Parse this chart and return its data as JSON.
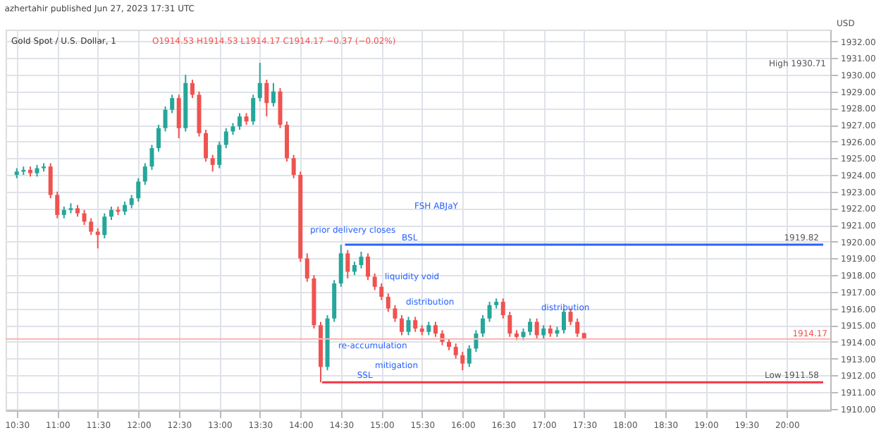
{
  "chart_data": {
    "type": "candlestick",
    "title": "Gold Spot / U.S. Dollar, 1",
    "subtitle": "O1914.53 H1914.53 L1914.17 C1914.17 −0.37 (−0.02%)",
    "ylabel": "USD",
    "x": [
      10.5,
      10.583,
      10.667,
      10.75,
      10.833,
      10.917,
      11,
      11.083,
      11.167,
      11.25,
      11.333,
      11.417,
      11.5,
      11.583,
      11.667,
      11.75,
      11.833,
      11.917,
      12,
      12.083,
      12.167,
      12.25,
      12.333,
      12.417,
      12.5,
      12.583,
      12.667,
      12.75,
      12.833,
      12.917,
      13,
      13.083,
      13.167,
      13.25,
      13.333,
      13.417,
      13.5,
      13.583,
      13.667,
      13.75,
      13.833,
      13.917,
      14,
      14.083,
      14.167,
      14.25,
      14.333,
      14.417,
      14.5,
      14.583,
      14.667,
      14.75,
      14.833,
      14.917,
      15,
      15.083,
      15.167,
      15.25,
      15.333,
      15.417,
      15.5,
      15.583,
      15.667,
      15.75,
      15.833,
      15.917,
      16,
      16.083,
      16.167,
      16.25,
      16.333,
      16.417,
      16.5,
      16.583,
      16.667,
      16.75,
      16.833,
      16.917,
      17,
      17.083,
      17.167,
      17.25,
      17.333,
      17.417,
      17.5
    ],
    "ohlc": [
      [
        1924.0,
        1924.4,
        1923.8,
        1924.2
      ],
      [
        1924.2,
        1924.5,
        1924.0,
        1924.3
      ],
      [
        1924.3,
        1924.5,
        1923.9,
        1924.1
      ],
      [
        1924.1,
        1924.6,
        1923.9,
        1924.4
      ],
      [
        1924.4,
        1924.7,
        1924.2,
        1924.5
      ],
      [
        1924.5,
        1924.7,
        1922.6,
        1922.8
      ],
      [
        1922.8,
        1923.0,
        1921.4,
        1921.6
      ],
      [
        1921.6,
        1922.1,
        1921.4,
        1921.9
      ],
      [
        1921.9,
        1922.3,
        1921.7,
        1922.0
      ],
      [
        1922.0,
        1922.2,
        1921.5,
        1921.7
      ],
      [
        1921.7,
        1921.9,
        1921.0,
        1921.2
      ],
      [
        1921.2,
        1921.4,
        1920.4,
        1920.6
      ],
      [
        1920.6,
        1920.8,
        1919.6,
        1920.4
      ],
      [
        1920.4,
        1921.7,
        1920.2,
        1921.5
      ],
      [
        1921.5,
        1922.1,
        1921.3,
        1921.9
      ],
      [
        1921.9,
        1922.1,
        1921.6,
        1921.8
      ],
      [
        1921.8,
        1922.4,
        1921.6,
        1922.2
      ],
      [
        1922.2,
        1922.8,
        1922.0,
        1922.6
      ],
      [
        1922.6,
        1923.8,
        1922.4,
        1923.6
      ],
      [
        1923.6,
        1924.7,
        1923.4,
        1924.5
      ],
      [
        1924.5,
        1925.8,
        1924.3,
        1925.6
      ],
      [
        1925.6,
        1927.0,
        1925.4,
        1926.8
      ],
      [
        1926.8,
        1928.1,
        1926.6,
        1927.9
      ],
      [
        1927.9,
        1928.8,
        1927.7,
        1928.6
      ],
      [
        1928.6,
        1928.8,
        1926.2,
        1926.8
      ],
      [
        1926.8,
        1930.0,
        1926.6,
        1929.5
      ],
      [
        1929.5,
        1929.7,
        1928.6,
        1928.8
      ],
      [
        1928.8,
        1929.0,
        1926.3,
        1926.5
      ],
      [
        1926.5,
        1926.7,
        1924.8,
        1925.0
      ],
      [
        1925.0,
        1925.2,
        1924.2,
        1924.6
      ],
      [
        1924.6,
        1926.0,
        1924.4,
        1925.8
      ],
      [
        1925.8,
        1926.8,
        1925.6,
        1926.6
      ],
      [
        1926.6,
        1927.1,
        1926.4,
        1926.9
      ],
      [
        1926.9,
        1927.7,
        1926.7,
        1927.5
      ],
      [
        1927.5,
        1927.7,
        1927.0,
        1927.2
      ],
      [
        1927.2,
        1928.8,
        1927.0,
        1928.6
      ],
      [
        1928.6,
        1930.71,
        1928.4,
        1929.5
      ],
      [
        1929.5,
        1929.7,
        1927.5,
        1928.3
      ],
      [
        1928.3,
        1929.5,
        1928.1,
        1929.0
      ],
      [
        1929.0,
        1929.2,
        1926.8,
        1927.0
      ],
      [
        1927.0,
        1927.2,
        1924.8,
        1925.0
      ],
      [
        1925.0,
        1925.2,
        1923.8,
        1924.0
      ],
      [
        1924.0,
        1924.2,
        1918.8,
        1919.0
      ],
      [
        1919.0,
        1919.3,
        1917.6,
        1917.8
      ],
      [
        1917.8,
        1918.0,
        1914.8,
        1915.0
      ],
      [
        1915.0,
        1915.2,
        1911.58,
        1912.5
      ],
      [
        1912.5,
        1915.6,
        1912.3,
        1915.4
      ],
      [
        1915.4,
        1917.7,
        1915.2,
        1917.5
      ],
      [
        1917.5,
        1919.82,
        1917.3,
        1919.3
      ],
      [
        1919.3,
        1919.5,
        1917.8,
        1918.2
      ],
      [
        1918.2,
        1918.8,
        1918.0,
        1918.6
      ],
      [
        1918.6,
        1919.4,
        1918.4,
        1919.1
      ],
      [
        1919.1,
        1919.3,
        1917.7,
        1917.9
      ],
      [
        1917.9,
        1918.1,
        1917.1,
        1917.3
      ],
      [
        1917.3,
        1917.5,
        1916.5,
        1916.7
      ],
      [
        1916.7,
        1916.9,
        1915.8,
        1916.0
      ],
      [
        1916.0,
        1916.2,
        1915.2,
        1915.4
      ],
      [
        1915.4,
        1915.6,
        1914.4,
        1914.6
      ],
      [
        1914.6,
        1915.5,
        1914.4,
        1915.3
      ],
      [
        1915.3,
        1915.5,
        1914.6,
        1914.8
      ],
      [
        1914.8,
        1915.0,
        1914.4,
        1914.6
      ],
      [
        1914.6,
        1915.2,
        1914.4,
        1915.0
      ],
      [
        1915.0,
        1915.2,
        1914.3,
        1914.5
      ],
      [
        1914.5,
        1914.7,
        1913.8,
        1914.0
      ],
      [
        1914.0,
        1914.2,
        1913.5,
        1913.7
      ],
      [
        1913.7,
        1913.9,
        1913.0,
        1913.2
      ],
      [
        1913.2,
        1913.4,
        1912.3,
        1912.7
      ],
      [
        1912.7,
        1913.8,
        1912.5,
        1913.6
      ],
      [
        1913.6,
        1914.7,
        1913.4,
        1914.5
      ],
      [
        1914.5,
        1915.6,
        1914.3,
        1915.4
      ],
      [
        1915.4,
        1916.4,
        1915.2,
        1916.2
      ],
      [
        1916.2,
        1916.6,
        1916.0,
        1916.4
      ],
      [
        1916.4,
        1916.6,
        1915.4,
        1915.6
      ],
      [
        1915.6,
        1915.8,
        1914.3,
        1914.5
      ],
      [
        1914.5,
        1914.7,
        1914.1,
        1914.3
      ],
      [
        1914.3,
        1914.8,
        1914.1,
        1914.6
      ],
      [
        1914.6,
        1915.4,
        1914.4,
        1915.2
      ],
      [
        1915.2,
        1915.4,
        1914.2,
        1914.4
      ],
      [
        1914.4,
        1915.0,
        1914.2,
        1914.8
      ],
      [
        1914.8,
        1915.0,
        1914.3,
        1914.5
      ],
      [
        1914.5,
        1914.9,
        1914.3,
        1914.7
      ],
      [
        1914.7,
        1916.0,
        1914.5,
        1915.8
      ],
      [
        1915.8,
        1916.0,
        1915.0,
        1915.2
      ],
      [
        1915.2,
        1915.4,
        1914.3,
        1914.5
      ],
      [
        1914.53,
        1914.53,
        1914.17,
        1914.17
      ]
    ],
    "xlim": [
      10.45,
      20.45
    ],
    "xticks": [
      {
        "value": 10.5,
        "label": "10:30"
      },
      {
        "value": 11,
        "label": "11:00"
      },
      {
        "value": 11.5,
        "label": "11:30"
      },
      {
        "value": 12,
        "label": "12:00"
      },
      {
        "value": 12.5,
        "label": "12:30"
      },
      {
        "value": 13,
        "label": "13:00"
      },
      {
        "value": 13.5,
        "label": "13:30"
      },
      {
        "value": 14,
        "label": "14:00"
      },
      {
        "value": 14.5,
        "label": "14:30"
      },
      {
        "value": 15,
        "label": "15:00"
      },
      {
        "value": 15.5,
        "label": "15:30"
      },
      {
        "value": 16,
        "label": "16:00"
      },
      {
        "value": 16.5,
        "label": "16:30"
      },
      {
        "value": 17,
        "label": "17:00"
      },
      {
        "value": 17.5,
        "label": "17:30"
      },
      {
        "value": 18,
        "label": "18:00"
      },
      {
        "value": 18.5,
        "label": "18:30"
      },
      {
        "value": 19,
        "label": "19:00"
      },
      {
        "value": 19.5,
        "label": "19:30"
      },
      {
        "value": 20,
        "label": "20:00"
      }
    ],
    "ylim": [
      1909.9,
      1932.7
    ],
    "yticks": [
      {
        "value": 1910,
        "label": "1910.00"
      },
      {
        "value": 1911,
        "label": "1911.00"
      },
      {
        "value": 1912,
        "label": "1912.00"
      },
      {
        "value": 1913,
        "label": "1913.00"
      },
      {
        "value": 1914,
        "label": "1914.00"
      },
      {
        "value": 1915,
        "label": "1915.00"
      },
      {
        "value": 1916,
        "label": "1916.00"
      },
      {
        "value": 1917,
        "label": "1917.00"
      },
      {
        "value": 1918,
        "label": "1918.00"
      },
      {
        "value": 1919,
        "label": "1919.00"
      },
      {
        "value": 1920,
        "label": "1920.00"
      },
      {
        "value": 1921,
        "label": "1921.00"
      },
      {
        "value": 1922,
        "label": "1922.00"
      },
      {
        "value": 1923,
        "label": "1923.00"
      },
      {
        "value": 1924,
        "label": "1924.00"
      },
      {
        "value": 1925,
        "label": "1925.00"
      },
      {
        "value": 1926,
        "label": "1926.00"
      },
      {
        "value": 1927,
        "label": "1927.00"
      },
      {
        "value": 1928,
        "label": "1928.00"
      },
      {
        "value": 1929,
        "label": "1929.00"
      },
      {
        "value": 1930,
        "label": "1930.00"
      },
      {
        "value": 1931,
        "label": "1931.00"
      },
      {
        "value": 1932,
        "label": "1932.00"
      }
    ],
    "grid": true,
    "series": [
      {
        "type": "line",
        "color": "#2962ff",
        "x": [
          14.55,
          20.45
        ],
        "values": [
          1919.82,
          1919.82
        ]
      },
      {
        "type": "line",
        "color": "#f23645",
        "x": [
          14.267,
          20.45
        ],
        "values": [
          1911.58,
          1911.58
        ]
      }
    ],
    "ref_lines": [
      {
        "axis": "y",
        "value": 1914.17,
        "label": "1914.17",
        "color": "#f7b3b3"
      }
    ],
    "annotations": [
      "azhertahir published Jun 27, 2023 17:31 UTC",
      "FSH ABJaY",
      "prior delivery closes",
      "liquidity void",
      "distribution",
      "re-accumulation",
      "mitigation",
      "distribution",
      "High 1930.71",
      {
        "text": "BSL",
        "x": 15.25,
        "y": 1919.82
      },
      {
        "text": "SSL",
        "x": 14.7,
        "y": 1911.58
      },
      {
        "text": "1919.82",
        "x": 20.45,
        "y": 1919.82
      },
      {
        "text": "Low 1911.58",
        "x": 20.45,
        "y": 1911.58
      }
    ]
  }
}
